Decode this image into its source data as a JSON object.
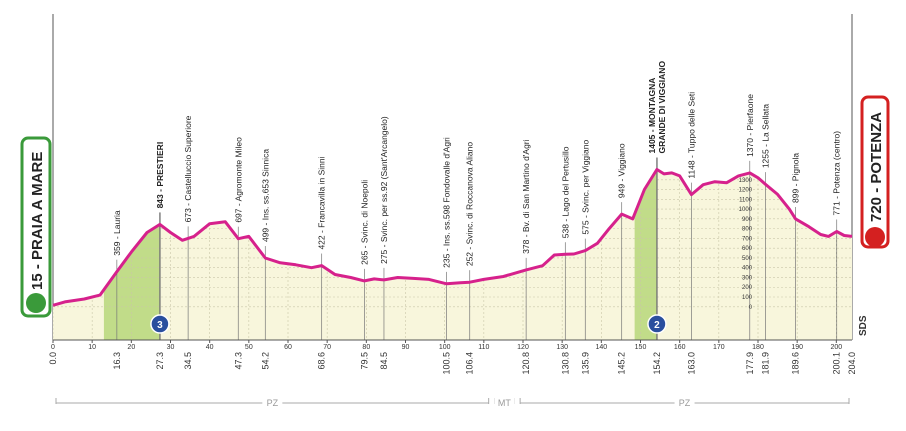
{
  "chart_data": {
    "type": "elevation-profile",
    "start": "15 - PRAIA A MARE",
    "finish": "720 - POTENZA",
    "color": "#d6218c",
    "xlim": [
      0,
      204
    ],
    "xticks": [
      0,
      10,
      20,
      30,
      40,
      50,
      60,
      70,
      80,
      90,
      100,
      110,
      120,
      130,
      140,
      150,
      160,
      170,
      180,
      190,
      200
    ],
    "ylim": [
      -340,
      1400
    ],
    "yticks": [
      0,
      100,
      200,
      300,
      400,
      500,
      600,
      700,
      800,
      900,
      1000,
      1100,
      1200,
      1300
    ],
    "x": [
      0,
      3,
      8,
      12,
      16.3,
      20,
      24,
      27.3,
      30,
      33,
      36,
      40,
      44,
      47.3,
      50,
      54.2,
      58,
      62,
      66,
      68.6,
      72,
      76,
      79.5,
      82,
      84.5,
      88,
      92,
      96,
      100.5,
      104,
      106.4,
      110,
      115,
      120.8,
      125,
      128,
      130.8,
      133,
      135.9,
      139,
      142,
      145.2,
      148,
      151,
      154.2,
      156,
      158,
      160,
      163,
      166,
      169,
      172,
      175,
      177.9,
      180,
      181.9,
      185,
      188,
      189.6,
      193,
      196,
      198,
      200.1,
      202,
      204
    ],
    "values": [
      15,
      50,
      80,
      120,
      359,
      560,
      760,
      843,
      760,
      680,
      720,
      850,
      870,
      697,
      720,
      499,
      450,
      430,
      400,
      422,
      330,
      300,
      265,
      285,
      275,
      300,
      290,
      280,
      235,
      245,
      252,
      280,
      310,
      378,
      420,
      530,
      538,
      540,
      575,
      650,
      800,
      949,
      900,
      1200,
      1405,
      1360,
      1370,
      1340,
      1148,
      1250,
      1280,
      1270,
      1340,
      1370,
      1320,
      1255,
      1150,
      1000,
      899,
      820,
      740,
      720,
      771,
      730,
      720
    ],
    "waypoints": [
      {
        "km": {
          "value": 0,
          "label": "0.0"
        }
      },
      {
        "km": 16.3,
        "label": "359 - Lauria"
      },
      {
        "km": 27.3,
        "label": "843 - PRESTIERI",
        "bold": true
      },
      {
        "km": 34.5,
        "label": "673 - Castelluccio Superiore"
      },
      {
        "km": 47.3,
        "label": "697 - Agromonte Mileo"
      },
      {
        "km": 54.2,
        "label": "499 - Ins. ss.653 Sinnica"
      },
      {
        "km": 68.6,
        "label": "422 - Francavilla in Sinni"
      },
      {
        "km": 79.5,
        "label": "265 - Svinc. di Noepoli"
      },
      {
        "km": 84.5,
        "label": "275 - Svinc. per ss.92 (Sant'Arcangelo)"
      },
      {
        "km": 100.5,
        "label": "235 - Ins. ss.598 Fondovalle d'Agri"
      },
      {
        "km": 106.4,
        "label": "252 - Svinc. di Roccanova Aliano"
      },
      {
        "km": 120.8,
        "label": "378 - Bv. di San Martino d'Agri"
      },
      {
        "km": 130.8,
        "label": "538 - Lago del Pertusillo"
      },
      {
        "km": 135.9,
        "label": "575 - Svinc. per Viggiano"
      },
      {
        "km": 145.2,
        "label": "949 - Viggiano"
      },
      {
        "km": 154.2,
        "label": [
          "1405 - MONTAGNA",
          "GRANDE DI VIGGIANO"
        ],
        "bold": true
      },
      {
        "km": {
          "value": 163,
          "label": "163.0"
        },
        "label": "1148 - Tuppo delle Seti"
      },
      {
        "km": 177.9,
        "label": "1370 - Pierfaone"
      },
      {
        "km": 181.9,
        "label": "1255 - La Sellata"
      },
      {
        "km": 189.6,
        "label": "899 - Pignola"
      },
      {
        "km": 200.1,
        "label": "771 - Potenza (centro)"
      },
      {
        "km": {
          "value": 204,
          "label": "204.0"
        }
      }
    ],
    "climbs": [
      {
        "category": "3",
        "start": 13,
        "end": 27.3
      },
      {
        "category": "2",
        "start": 148.5,
        "end": 154.2
      }
    ],
    "regions": [
      {
        "label": "PZ",
        "start": 0,
        "end": 112
      },
      {
        "label": "MT",
        "start": 112,
        "end": 118.5
      },
      {
        "label": "PZ",
        "start": 118.5,
        "end": 204
      }
    ],
    "footer_mark": "SDS"
  }
}
